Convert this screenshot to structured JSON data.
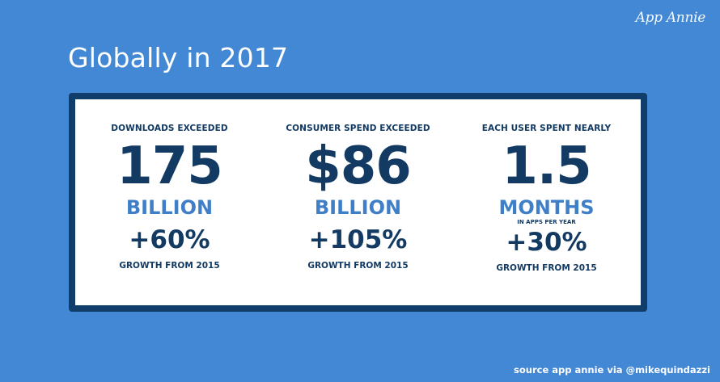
{
  "brand": "App Annie",
  "headline": "Globally in 2017",
  "stats": [
    {
      "heading": "DOWNLOADS EXCEEDED",
      "value": "175",
      "unit": "BILLION",
      "subunit": "",
      "growth": "+60%",
      "growth_label": "GROWTH FROM 2015"
    },
    {
      "heading": "CONSUMER SPEND EXCEEDED",
      "value": "$86",
      "unit": "BILLION",
      "subunit": "",
      "growth": "+105%",
      "growth_label": "GROWTH FROM 2015"
    },
    {
      "heading": "EACH USER SPENT NEARLY",
      "value": "1.5",
      "unit": "MONTHS",
      "subunit": "IN APPS PER YEAR",
      "growth": "+30%",
      "growth_label": "GROWTH FROM 2015"
    }
  ],
  "source": "source app annie via @mikequindazzi",
  "colors": {
    "background": "#4388d4",
    "panel_border": "#113d6b",
    "dark_text": "#123a63",
    "accent_text": "#3f7fc8"
  }
}
